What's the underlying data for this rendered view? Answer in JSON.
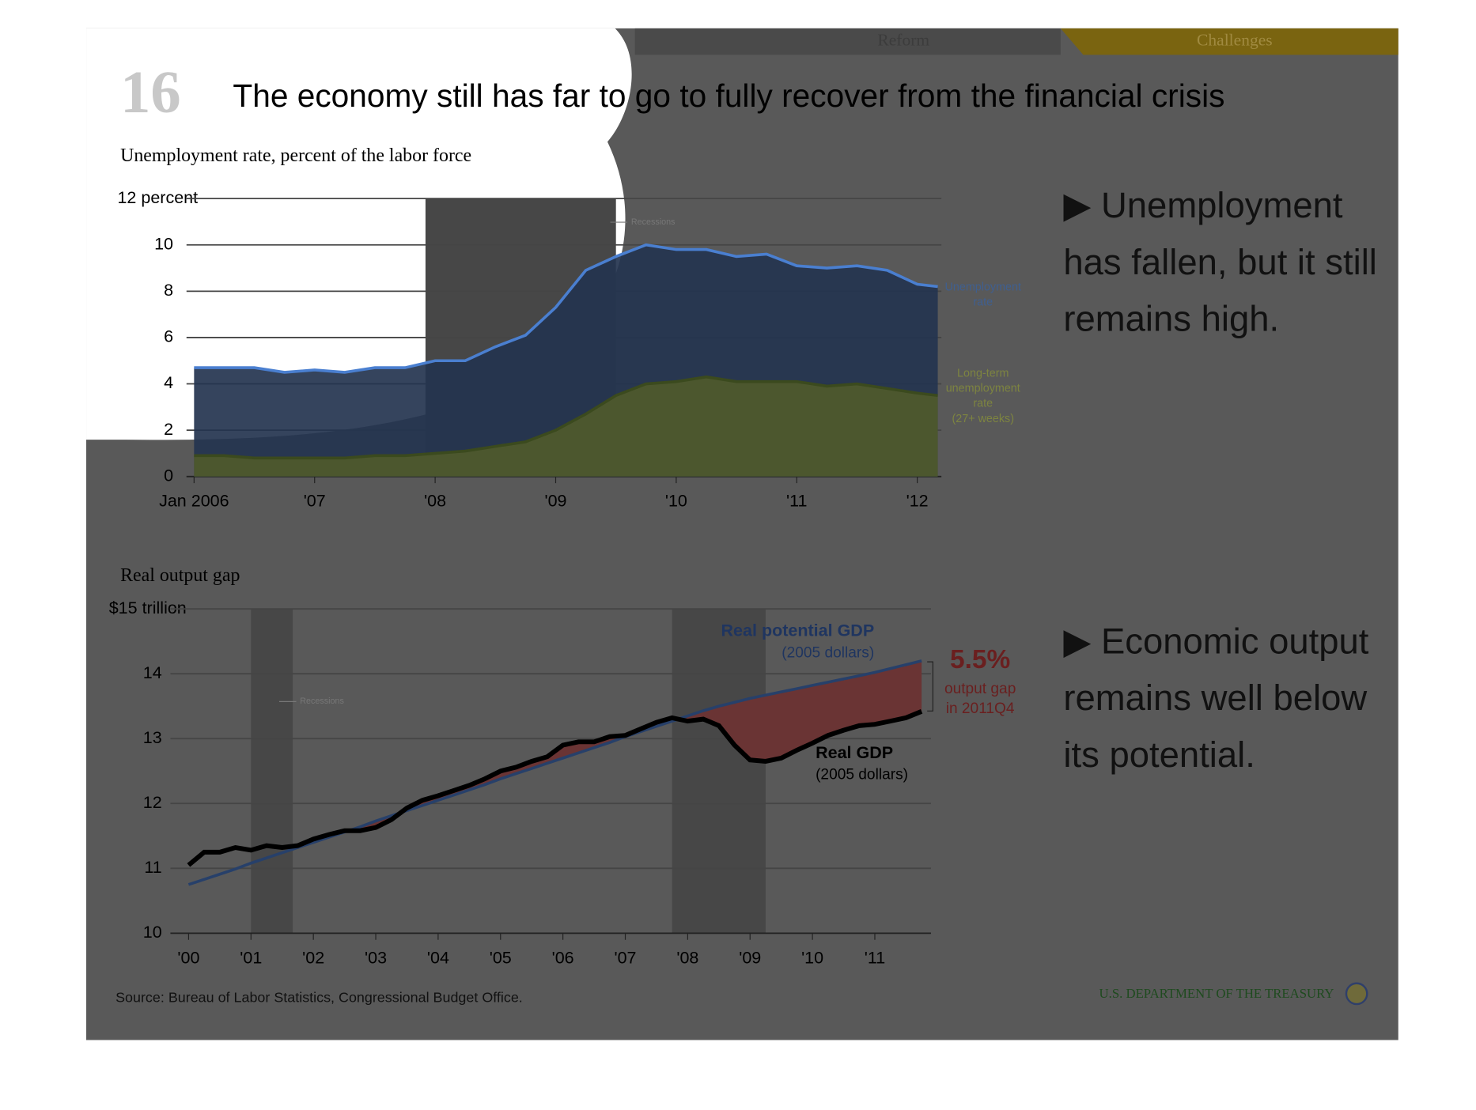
{
  "header": {
    "nav": [
      "Reform",
      "Challenges"
    ],
    "number": "16",
    "title": "The economy still has far to go to fully recover from the financial crisis"
  },
  "chart_data": [
    {
      "type": "area",
      "title": "Unemployment rate, percent of the labor force",
      "x": [
        2006,
        2006.25,
        2006.5,
        2006.75,
        2007,
        2007.25,
        2007.5,
        2007.75,
        2008,
        2008.25,
        2008.5,
        2008.75,
        2009,
        2009.25,
        2009.5,
        2009.75,
        2010,
        2010.25,
        2010.5,
        2010.75,
        2011,
        2011.25,
        2011.5,
        2011.75,
        2012,
        2012.17
      ],
      "series": [
        {
          "name": "Unemployment rate",
          "color": "#4a7fd0",
          "fill": "#24344f",
          "values": [
            4.7,
            4.7,
            4.7,
            4.5,
            4.6,
            4.5,
            4.7,
            4.7,
            5.0,
            5.0,
            5.6,
            6.1,
            7.3,
            8.9,
            9.5,
            10.0,
            9.8,
            9.8,
            9.5,
            9.6,
            9.1,
            9.0,
            9.1,
            8.9,
            8.3,
            8.2
          ]
        },
        {
          "name": "Long-term unemployment rate (27+ weeks)",
          "color": "#3b4a1e",
          "fill": "#4f5a2b",
          "values": [
            0.9,
            0.9,
            0.8,
            0.8,
            0.8,
            0.8,
            0.9,
            0.9,
            1.0,
            1.1,
            1.3,
            1.5,
            2.0,
            2.7,
            3.5,
            4.0,
            4.1,
            4.3,
            4.1,
            4.1,
            4.1,
            3.9,
            4.0,
            3.8,
            3.6,
            3.5
          ]
        }
      ],
      "recessions": [
        [
          2007.92,
          2009.5
        ]
      ],
      "recession_label": "Recessions",
      "xlim": [
        2006,
        2012.2
      ],
      "ylim": [
        0,
        12
      ],
      "xticks": [
        {
          "value": 2006,
          "label": "Jan 2006"
        },
        {
          "value": 2007,
          "label": "'07"
        },
        {
          "value": 2008,
          "label": "'08"
        },
        {
          "value": 2009,
          "label": "'09"
        },
        {
          "value": 2010,
          "label": "'10"
        },
        {
          "value": 2011,
          "label": "'11"
        },
        {
          "value": 2012,
          "label": "'12"
        }
      ],
      "yticks": [
        0,
        2,
        4,
        6,
        8,
        10,
        {
          "value": 12,
          "label": "12 percent"
        }
      ],
      "grid": true
    },
    {
      "type": "line",
      "title": "Real output gap",
      "x": [
        2000,
        2000.25,
        2000.5,
        2000.75,
        2001,
        2001.25,
        2001.5,
        2001.75,
        2002,
        2002.25,
        2002.5,
        2002.75,
        2003,
        2003.25,
        2003.5,
        2003.75,
        2004,
        2004.25,
        2004.5,
        2004.75,
        2005,
        2005.25,
        2005.5,
        2005.75,
        2006,
        2006.25,
        2006.5,
        2006.75,
        2007,
        2007.25,
        2007.5,
        2007.75,
        2008,
        2008.25,
        2008.5,
        2008.75,
        2009,
        2009.25,
        2009.5,
        2009.75,
        2010,
        2010.25,
        2010.5,
        2010.75,
        2011,
        2011.25,
        2011.5,
        2011.75
      ],
      "series": [
        {
          "name": "Real potential GDP",
          "color": "#27406a",
          "values": [
            10.75,
            10.83,
            10.91,
            10.99,
            11.08,
            11.16,
            11.24,
            11.32,
            11.4,
            11.48,
            11.56,
            11.64,
            11.73,
            11.81,
            11.89,
            11.97,
            12.05,
            12.13,
            12.21,
            12.29,
            12.38,
            12.46,
            12.54,
            12.62,
            12.7,
            12.78,
            12.86,
            12.94,
            13.03,
            13.11,
            13.19,
            13.27,
            13.35,
            13.43,
            13.5,
            13.56,
            13.62,
            13.67,
            13.72,
            13.77,
            13.82,
            13.87,
            13.92,
            13.97,
            14.02,
            14.08,
            14.14,
            14.2
          ]
        },
        {
          "name": "Real GDP",
          "color": "#000000",
          "values": [
            11.05,
            11.25,
            11.25,
            11.32,
            11.28,
            11.35,
            11.32,
            11.35,
            11.45,
            11.52,
            11.58,
            11.58,
            11.63,
            11.75,
            11.93,
            12.05,
            12.12,
            12.2,
            12.28,
            12.38,
            12.5,
            12.56,
            12.65,
            12.72,
            12.9,
            12.95,
            12.95,
            13.03,
            13.05,
            13.15,
            13.25,
            13.32,
            13.27,
            13.3,
            13.2,
            12.9,
            12.67,
            12.65,
            12.7,
            12.82,
            12.93,
            13.05,
            13.13,
            13.2,
            13.22,
            13.27,
            13.32,
            13.42
          ]
        }
      ],
      "gap_color": "#6a3434",
      "recessions": [
        [
          2001.0,
          2001.67
        ],
        [
          2007.75,
          2009.25
        ]
      ],
      "recession_label": "Recessions",
      "annotations": [
        "(2005 dollars)",
        "(2005 dollars)",
        "5.5%",
        "output gap",
        "in 2011Q4"
      ],
      "xlim": [
        1999.83,
        2011.9
      ],
      "ylim": [
        10,
        15
      ],
      "xticks": [
        {
          "value": 2000,
          "label": "'00"
        },
        {
          "value": 2001,
          "label": "'01"
        },
        {
          "value": 2002,
          "label": "'02"
        },
        {
          "value": 2003,
          "label": "'03"
        },
        {
          "value": 2004,
          "label": "'04"
        },
        {
          "value": 2005,
          "label": "'05"
        },
        {
          "value": 2006,
          "label": "'06"
        },
        {
          "value": 2007,
          "label": "'07"
        },
        {
          "value": 2008,
          "label": "'08"
        },
        {
          "value": 2009,
          "label": "'09"
        },
        {
          "value": 2010,
          "label": "'10"
        },
        {
          "value": 2011,
          "label": "'11"
        }
      ],
      "yticks": [
        10,
        11,
        12,
        13,
        14,
        {
          "value": 15,
          "label": "$15 trillion"
        }
      ],
      "grid": true
    }
  ],
  "bullets": [
    [
      "▶ Unemployment",
      "has fallen, but it still",
      "remains high."
    ],
    [
      "▶ Economic output",
      "remains well below",
      "its potential."
    ]
  ],
  "source": "Source: Bureau of Labor Statistics, Congressional Budget Office.",
  "footer": "U.S. DEPARTMENT OF THE TREASURY"
}
